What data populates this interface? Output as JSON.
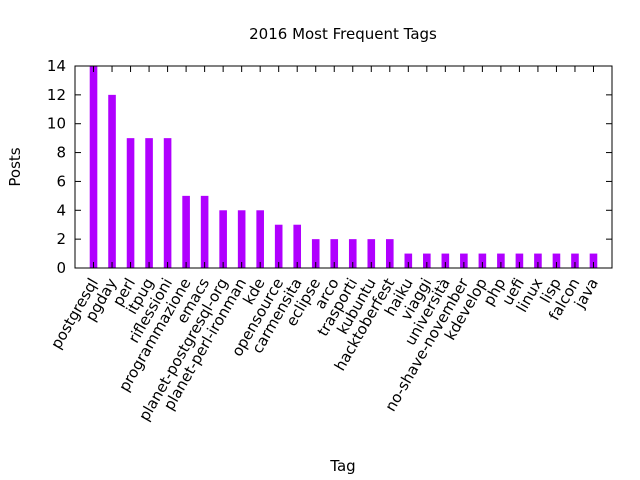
{
  "chart_data": {
    "type": "bar",
    "title": "2016 Most Frequent Tags",
    "xlabel": "Tag",
    "ylabel": "Posts",
    "ylim": [
      0,
      14
    ],
    "yticks": [
      0,
      2,
      4,
      6,
      8,
      10,
      12,
      14
    ],
    "grid": false,
    "legend": "none",
    "bar_color": "#b000ff",
    "categories": [
      "postgresql",
      "pgday",
      "perl",
      "itpug",
      "riflessioni",
      "programmazione",
      "emacs",
      "planet-postgresql-org",
      "planet-perl-ironman",
      "kde",
      "opensource",
      "carmensita",
      "eclipse",
      "arco",
      "trasporti",
      "kubuntu",
      "hacktoberfest",
      "haiku",
      "viaggi",
      "università",
      "no-shave-november",
      "kdevelop",
      "php",
      "uefi",
      "linux",
      "lisp",
      "falcon",
      "java"
    ],
    "values": [
      14,
      12,
      9,
      9,
      9,
      5,
      5,
      4,
      4,
      4,
      3,
      3,
      2,
      2,
      2,
      2,
      2,
      1,
      1,
      1,
      1,
      1,
      1,
      1,
      1,
      1,
      1,
      1
    ]
  }
}
